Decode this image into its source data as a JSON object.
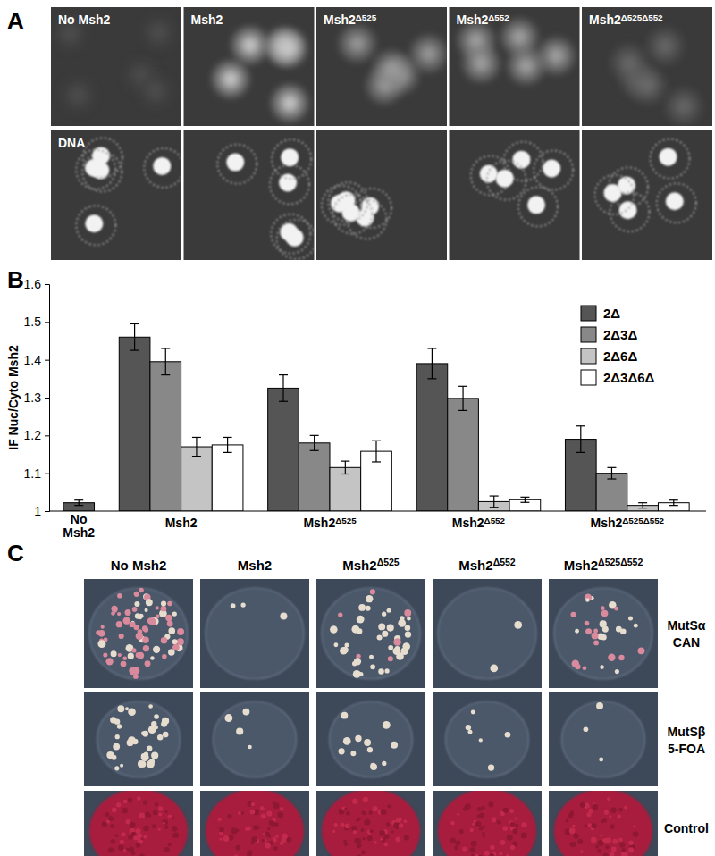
{
  "panel_labels": [
    "A",
    "B",
    "C"
  ],
  "panel_a": {
    "columns": [
      "No Msh2",
      "Msh2",
      "Msh2Δ525",
      "Msh2Δ552",
      "Msh2Δ525Δ552"
    ],
    "row_label": "DNA"
  },
  "chart_data": {
    "type": "bar",
    "y_label": "IF Nuc/Cyto Msh2",
    "categories": [
      "No Msh2",
      "Msh2",
      "Msh2Δ525",
      "Msh2Δ552",
      "Msh2Δ525Δ552"
    ],
    "series": [
      {
        "name": "2Δ",
        "color": "#555555",
        "values": [
          1.022,
          1.46,
          1.325,
          1.39,
          1.19
        ],
        "errors": [
          0.007,
          0.035,
          0.035,
          0.04,
          0.035
        ]
      },
      {
        "name": "2Δ3Δ",
        "color": "#888888",
        "values": [
          null,
          1.395,
          1.18,
          1.298,
          1.1
        ],
        "errors": [
          null,
          0.035,
          0.02,
          0.032,
          0.015
        ]
      },
      {
        "name": "2Δ6Δ",
        "color": "#c4c4c4",
        "values": [
          null,
          1.17,
          1.115,
          1.025,
          1.015
        ],
        "errors": [
          null,
          0.025,
          0.017,
          0.015,
          0.007
        ]
      },
      {
        "name": "2Δ3Δ6Δ",
        "color": "#ffffff",
        "values": [
          null,
          1.175,
          1.158,
          1.03,
          1.022
        ],
        "errors": [
          null,
          0.02,
          0.028,
          0.007,
          0.007
        ]
      }
    ],
    "ylim": [
      1,
      1.6
    ],
    "yticks": [
      1,
      1.1,
      1.2,
      1.3,
      1.4,
      1.5,
      1.6
    ],
    "grid": false,
    "legend": "upper right"
  },
  "panel_c": {
    "columns": [
      "No Msh2",
      "Msh2",
      "Msh2Δ525",
      "Msh2Δ552",
      "Msh2Δ525Δ552"
    ],
    "rows": [
      [
        "MutSα",
        "CAN"
      ],
      [
        "MutSβ",
        "5-FOA"
      ],
      [
        "Control"
      ]
    ]
  }
}
